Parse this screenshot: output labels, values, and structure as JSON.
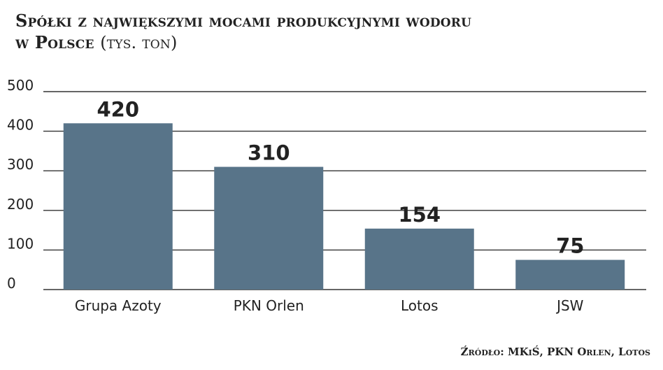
{
  "title": {
    "line1": "Spółki z największymi mocami produkcyjnymi wodoru",
    "line2": "w Polsce",
    "unit": "(tys. ton)"
  },
  "source": "Źródło: MKiŚ, PKN Orlen, Lotos",
  "colors": {
    "bar": "#587489",
    "grid": "#333333",
    "text": "#222222"
  },
  "chart_data": {
    "type": "bar",
    "categories": [
      "Grupa Azoty",
      "PKN Orlen",
      "Lotos",
      "JSW"
    ],
    "values": [
      420,
      310,
      154,
      75
    ],
    "value_labels": [
      "420",
      "310",
      "154",
      "75"
    ],
    "yticks": [
      "0",
      "100",
      "200",
      "300",
      "400",
      "500"
    ],
    "ylim": [
      0,
      500
    ],
    "grid": true,
    "legend": "none"
  }
}
